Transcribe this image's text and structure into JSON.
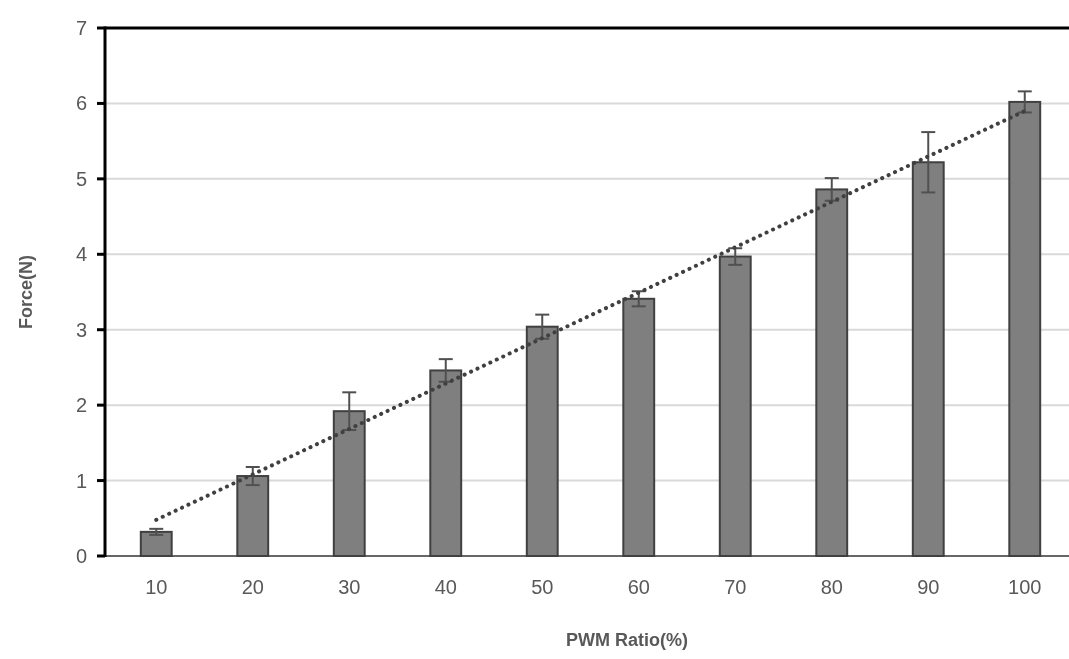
{
  "chart_data": {
    "type": "bar",
    "xlabel": "PWM Ratio(%)",
    "ylabel": "Force(N)",
    "categories": [
      "10",
      "20",
      "30",
      "40",
      "50",
      "60",
      "70",
      "80",
      "90",
      "100"
    ],
    "series": [
      {
        "color": "#7f7f7f",
        "values": [
          0.32,
          1.06,
          1.92,
          2.46,
          3.04,
          3.41,
          3.97,
          4.86,
          5.22,
          6.02
        ],
        "errors": [
          0.04,
          0.12,
          0.25,
          0.15,
          0.16,
          0.1,
          0.11,
          0.15,
          0.4,
          0.14
        ]
      },
      {
        "type": "line",
        "x": [
          "10",
          "100"
        ],
        "values": [
          0.48,
          5.9
        ],
        "color": "#404040",
        "line_style": "dotted"
      }
    ],
    "ylim": [
      0,
      7
    ],
    "yticks": [
      0,
      1,
      2,
      3,
      4,
      5,
      6,
      7
    ],
    "grid": "y"
  }
}
